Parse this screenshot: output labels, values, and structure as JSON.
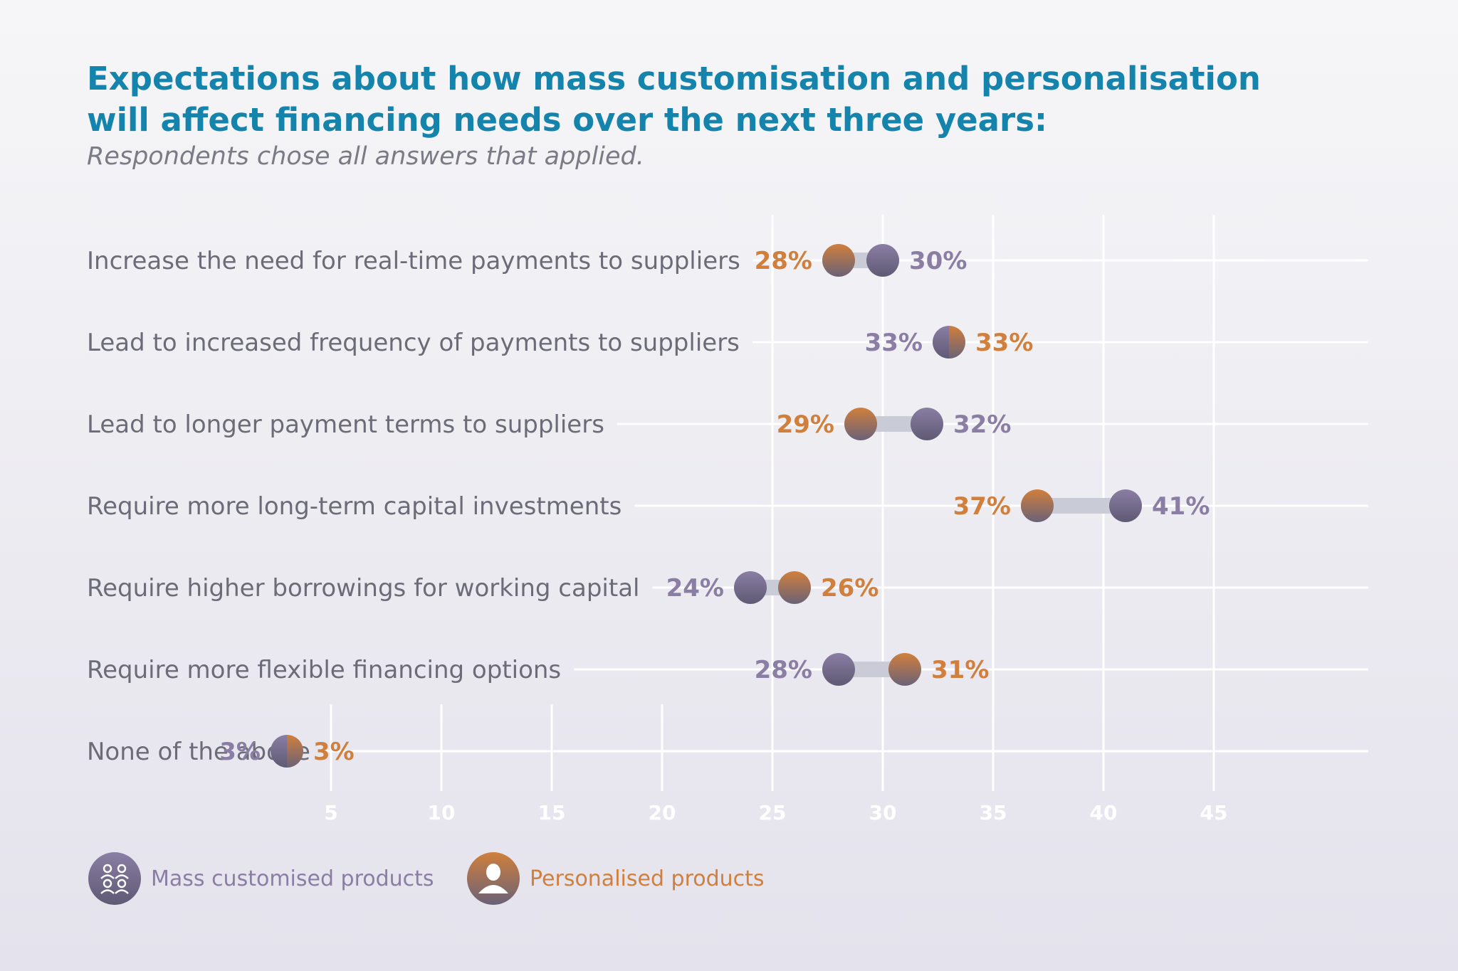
{
  "title": "Expectations about how mass customisation and personalisation will affect financing needs over the next three years:",
  "subtitle": "Respondents chose all answers that applied.",
  "colors": {
    "mass": "#8a7ea4",
    "mass_dark": "#5f5a74",
    "personal": "#d07f3c",
    "personal_dark": "#6a6278",
    "title": "#1484ac",
    "label": "#6c6c78",
    "grid": "#ffffff",
    "connector": "#c9ccd6"
  },
  "chart_data": {
    "type": "dumbbell",
    "xlim": [
      0,
      47
    ],
    "x_ticks": [
      5,
      10,
      15,
      20,
      25,
      30,
      35,
      40,
      45
    ],
    "grid": true,
    "legend_position": "bottom-left",
    "categories": [
      "Increase the need for real-time payments to suppliers",
      "Lead to increased frequency of payments to suppliers",
      "Lead to longer payment terms to suppliers",
      "Require more long-term capital investments",
      "Require higher borrowings for working capital",
      "Require more flexible financing options",
      "None of the above"
    ],
    "series": [
      {
        "name": "Mass customised products",
        "values": [
          30,
          33,
          32,
          41,
          24,
          28,
          3
        ]
      },
      {
        "name": "Personalised products",
        "values": [
          28,
          33,
          29,
          37,
          26,
          31,
          3
        ]
      }
    ]
  },
  "legend": {
    "mass_icon": "people-group-icon",
    "personal_icon": "person-icon"
  }
}
